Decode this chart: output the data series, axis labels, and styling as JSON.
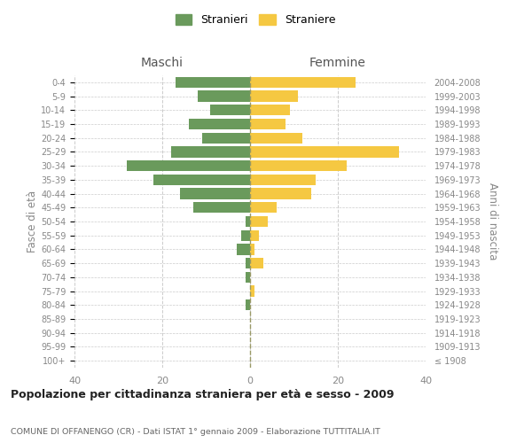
{
  "age_groups": [
    "100+",
    "95-99",
    "90-94",
    "85-89",
    "80-84",
    "75-79",
    "70-74",
    "65-69",
    "60-64",
    "55-59",
    "50-54",
    "45-49",
    "40-44",
    "35-39",
    "30-34",
    "25-29",
    "20-24",
    "15-19",
    "10-14",
    "5-9",
    "0-4"
  ],
  "birth_years": [
    "≤ 1908",
    "1909-1913",
    "1914-1918",
    "1919-1923",
    "1924-1928",
    "1929-1933",
    "1934-1938",
    "1939-1943",
    "1944-1948",
    "1949-1953",
    "1954-1958",
    "1959-1963",
    "1964-1968",
    "1969-1973",
    "1974-1978",
    "1979-1983",
    "1984-1988",
    "1989-1993",
    "1994-1998",
    "1999-2003",
    "2004-2008"
  ],
  "maschi": [
    0,
    0,
    0,
    0,
    1,
    0,
    1,
    1,
    3,
    2,
    1,
    13,
    16,
    22,
    28,
    18,
    11,
    14,
    9,
    12,
    17
  ],
  "femmine": [
    0,
    0,
    0,
    0,
    0,
    1,
    0,
    3,
    1,
    2,
    4,
    6,
    14,
    15,
    22,
    34,
    12,
    8,
    9,
    11,
    24
  ],
  "color_maschi": "#6a9a5c",
  "color_femmine": "#f5c842",
  "xlim": 40,
  "title": "Popolazione per cittadinanza straniera per età e sesso - 2009",
  "subtitle": "COMUNE DI OFFANENGO (CR) - Dati ISTAT 1° gennaio 2009 - Elaborazione TUTTITALIA.IT",
  "ylabel_left": "Fasce di età",
  "ylabel_right": "Anni di nascita",
  "label_maschi": "Stranieri",
  "label_femmine": "Straniere",
  "header_maschi": "Maschi",
  "header_femmine": "Femmine",
  "bg_color": "#ffffff",
  "grid_color": "#cccccc",
  "label_color": "#888888",
  "header_color": "#555555",
  "title_color": "#222222",
  "subtitle_color": "#666666"
}
